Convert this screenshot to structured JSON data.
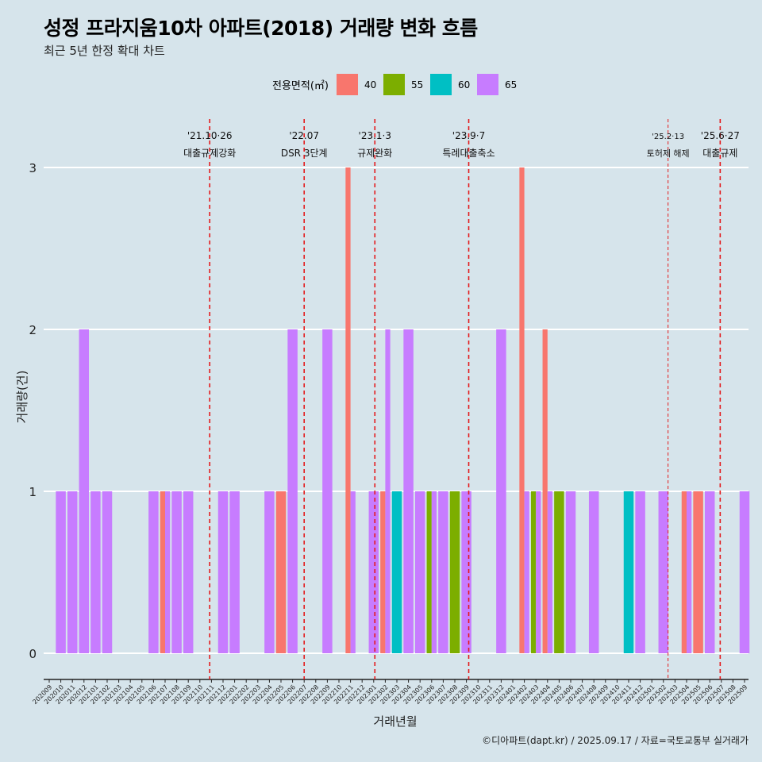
{
  "chart_data": {
    "type": "bar",
    "title": "성정 프라지움10차 아파트(2018) 거래량 변화 흐름",
    "subtitle": "최근 5년 한정 확대 차트",
    "xlabel": "거래년월",
    "ylabel": "거래량(건)",
    "ylim": [
      0,
      3
    ],
    "y_ticks": [
      "0",
      "1",
      "2",
      "3"
    ],
    "grid": true,
    "legend": {
      "title": "전용면적(㎡)",
      "placement": "top",
      "items": [
        {
          "label": "40",
          "color": "#F8766D"
        },
        {
          "label": "55",
          "color": "#7CAE00"
        },
        {
          "label": "60",
          "color": "#00BFC4"
        },
        {
          "label": "65",
          "color": "#C77CFF"
        }
      ]
    },
    "categories": [
      "202009",
      "202010",
      "202011",
      "202012",
      "202101",
      "202102",
      "202103",
      "202104",
      "202105",
      "202106",
      "202107",
      "202108",
      "202109",
      "202110",
      "202111",
      "202112",
      "202201",
      "202202",
      "202203",
      "202204",
      "202205",
      "202206",
      "202207",
      "202208",
      "202209",
      "202210",
      "202211",
      "202212",
      "202301",
      "202302",
      "202303",
      "202304",
      "202305",
      "202306",
      "202307",
      "202308",
      "202309",
      "202310",
      "202311",
      "202312",
      "202401",
      "202402",
      "202403",
      "202404",
      "202405",
      "202406",
      "202407",
      "202408",
      "202409",
      "202410",
      "202411",
      "202412",
      "202501",
      "202502",
      "202503",
      "202504",
      "202505",
      "202506",
      "202507",
      "202508",
      "202509"
    ],
    "bars": [
      {
        "month": "202010",
        "items": [
          {
            "area": "65",
            "count": 1
          }
        ]
      },
      {
        "month": "202011",
        "items": [
          {
            "area": "65",
            "count": 1
          }
        ]
      },
      {
        "month": "202012",
        "items": [
          {
            "area": "65",
            "count": 2
          }
        ]
      },
      {
        "month": "202101",
        "items": [
          {
            "area": "65",
            "count": 1
          }
        ]
      },
      {
        "month": "202102",
        "items": [
          {
            "area": "65",
            "count": 1
          }
        ]
      },
      {
        "month": "202106",
        "items": [
          {
            "area": "65",
            "count": 1
          }
        ]
      },
      {
        "month": "202107",
        "items": [
          {
            "area": "40",
            "count": 1
          },
          {
            "area": "65",
            "count": 1
          }
        ]
      },
      {
        "month": "202108",
        "items": [
          {
            "area": "65",
            "count": 1
          }
        ]
      },
      {
        "month": "202109",
        "items": [
          {
            "area": "65",
            "count": 1
          }
        ]
      },
      {
        "month": "202112",
        "items": [
          {
            "area": "65",
            "count": 1
          }
        ]
      },
      {
        "month": "202201",
        "items": [
          {
            "area": "65",
            "count": 1
          }
        ]
      },
      {
        "month": "202204",
        "items": [
          {
            "area": "65",
            "count": 1
          }
        ]
      },
      {
        "month": "202205",
        "items": [
          {
            "area": "40",
            "count": 1
          }
        ]
      },
      {
        "month": "202206",
        "items": [
          {
            "area": "65",
            "count": 2
          }
        ]
      },
      {
        "month": "202209",
        "items": [
          {
            "area": "65",
            "count": 2
          }
        ]
      },
      {
        "month": "202211",
        "items": [
          {
            "area": "40",
            "count": 3
          },
          {
            "area": "65",
            "count": 1
          }
        ]
      },
      {
        "month": "202301",
        "items": [
          {
            "area": "65",
            "count": 1
          }
        ]
      },
      {
        "month": "202302",
        "items": [
          {
            "area": "40",
            "count": 1
          },
          {
            "area": "65",
            "count": 2
          }
        ]
      },
      {
        "month": "202303",
        "items": [
          {
            "area": "60",
            "count": 1
          }
        ]
      },
      {
        "month": "202304",
        "items": [
          {
            "area": "65",
            "count": 2
          }
        ]
      },
      {
        "month": "202305",
        "items": [
          {
            "area": "65",
            "count": 1
          }
        ]
      },
      {
        "month": "202306",
        "items": [
          {
            "area": "55",
            "count": 1
          },
          {
            "area": "65",
            "count": 1
          }
        ]
      },
      {
        "month": "202307",
        "items": [
          {
            "area": "65",
            "count": 1
          }
        ]
      },
      {
        "month": "202308",
        "items": [
          {
            "area": "55",
            "count": 1
          }
        ]
      },
      {
        "month": "202309",
        "items": [
          {
            "area": "65",
            "count": 1
          }
        ]
      },
      {
        "month": "202312",
        "items": [
          {
            "area": "65",
            "count": 2
          }
        ]
      },
      {
        "month": "202402",
        "items": [
          {
            "area": "40",
            "count": 3
          },
          {
            "area": "65",
            "count": 1
          }
        ]
      },
      {
        "month": "202403",
        "items": [
          {
            "area": "55",
            "count": 1
          },
          {
            "area": "65",
            "count": 1
          }
        ]
      },
      {
        "month": "202404",
        "items": [
          {
            "area": "40",
            "count": 2
          },
          {
            "area": "65",
            "count": 1
          }
        ]
      },
      {
        "month": "202405",
        "items": [
          {
            "area": "55",
            "count": 1
          }
        ]
      },
      {
        "month": "202406",
        "items": [
          {
            "area": "65",
            "count": 1
          }
        ]
      },
      {
        "month": "202408",
        "items": [
          {
            "area": "65",
            "count": 1
          }
        ]
      },
      {
        "month": "202411",
        "items": [
          {
            "area": "60",
            "count": 1
          }
        ]
      },
      {
        "month": "202412",
        "items": [
          {
            "area": "65",
            "count": 1
          }
        ]
      },
      {
        "month": "202502",
        "items": [
          {
            "area": "65",
            "count": 1
          }
        ]
      },
      {
        "month": "202504",
        "items": [
          {
            "area": "40",
            "count": 1
          },
          {
            "area": "65",
            "count": 1
          }
        ]
      },
      {
        "month": "202505",
        "items": [
          {
            "area": "40",
            "count": 1
          }
        ]
      },
      {
        "month": "202506",
        "items": [
          {
            "area": "65",
            "count": 1
          }
        ]
      },
      {
        "month": "202509",
        "items": [
          {
            "area": "65",
            "count": 1
          }
        ]
      }
    ],
    "events": [
      {
        "date": "'21.10·26",
        "label": "대출규제강화",
        "month": "202110",
        "offset": 0.85,
        "style": "major"
      },
      {
        "date": "'22.07",
        "label": "DSR 3단계",
        "month": "202207",
        "offset": 0.0,
        "style": "major"
      },
      {
        "date": "'23.1·3",
        "label": "규제완화",
        "month": "202301",
        "offset": 0.1,
        "style": "major"
      },
      {
        "date": "'23.9·7",
        "label": "특례대출축소",
        "month": "202309",
        "offset": 0.2,
        "style": "major"
      },
      {
        "date": "'25.2·13",
        "label": "토허제 해제",
        "month": "202502",
        "offset": 0.4,
        "style": "minor"
      },
      {
        "date": "'25.6·27",
        "label": "대출규제",
        "month": "202506",
        "offset": 0.9,
        "style": "major"
      }
    ],
    "event_color": "#E41A1C"
  },
  "caption": "©디아파트(dapt.kr) / 2025.09.17 / 자료=국토교통부 실거래가"
}
